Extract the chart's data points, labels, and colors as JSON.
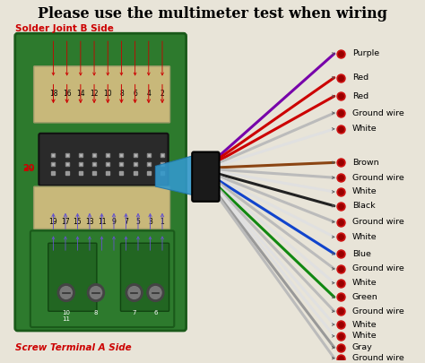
{
  "title": "Please use the multimeter test when wiring",
  "title_fontsize": 11.5,
  "title_color": "black",
  "bg_color": "#e8e4d8",
  "solder_label": "Solder Joint B Side",
  "screw_label": "Screw Terminal A Side",
  "label_color_red": "#cc0000",
  "top_pin_numbers": [
    "18",
    "16",
    "14",
    "12",
    "10",
    "8",
    "6",
    "4",
    "2"
  ],
  "bottom_pin_numbers": [
    "19",
    "17",
    "15",
    "13",
    "11",
    "9",
    "7",
    "5",
    "3",
    "1"
  ],
  "pin20_label": "20",
  "wire_entries": [
    {
      "label": "Purple",
      "wire_color": "#7700aa",
      "y_label": 345
    },
    {
      "label": "Red",
      "wire_color": "#cc0000",
      "y_label": 318
    },
    {
      "label": "Red",
      "wire_color": "#cc0000",
      "y_label": 297
    },
    {
      "label": "Ground wire",
      "wire_color": "#aaaaaa",
      "y_label": 278
    },
    {
      "label": "White",
      "wire_color": "#e8e8e8",
      "y_label": 260
    },
    {
      "label": "Brown",
      "wire_color": "#8B4513",
      "y_label": 222
    },
    {
      "label": "Ground wire",
      "wire_color": "#aaaaaa",
      "y_label": 205
    },
    {
      "label": "White",
      "wire_color": "#e8e8e8",
      "y_label": 189
    },
    {
      "label": "Black",
      "wire_color": "#222222",
      "y_label": 173
    },
    {
      "label": "Ground wire",
      "wire_color": "#aaaaaa",
      "y_label": 155
    },
    {
      "label": "White",
      "wire_color": "#e8e8e8",
      "y_label": 138
    },
    {
      "label": "Blue",
      "wire_color": "#1144cc",
      "y_label": 119
    },
    {
      "label": "Ground wire",
      "wire_color": "#aaaaaa",
      "y_label": 102
    },
    {
      "label": "White",
      "wire_color": "#e8e8e8",
      "y_label": 86
    },
    {
      "label": "Green",
      "wire_color": "#118811",
      "y_label": 70
    },
    {
      "label": "Ground wire",
      "wire_color": "#aaaaaa",
      "y_label": 54
    },
    {
      "label": "White",
      "wire_color": "#e8e8e8",
      "y_label": 39
    },
    {
      "label": "White",
      "wire_color": "#e8e8e8",
      "y_label": 26
    },
    {
      "label": "Gray",
      "wire_color": "#999999",
      "y_label": 13
    },
    {
      "label": "Ground wire",
      "wire_color": "#aaaaaa",
      "y_label": 1
    }
  ],
  "connector_green": "#2d7a2d",
  "connector_green_dark": "#1a5a1a",
  "connector_beige": "#c8b87a",
  "connector_dark": "#1a1a1a",
  "connector_medium": "#555555",
  "cable_blue": "#3399cc",
  "hub_black": "#1a1a1a",
  "dot_red": "#cc1111",
  "dot_red2": "#990000",
  "arrow_color_red": "#cc0000",
  "arrow_color_purple": "#6655cc",
  "pin_color": "#bbbbbb"
}
